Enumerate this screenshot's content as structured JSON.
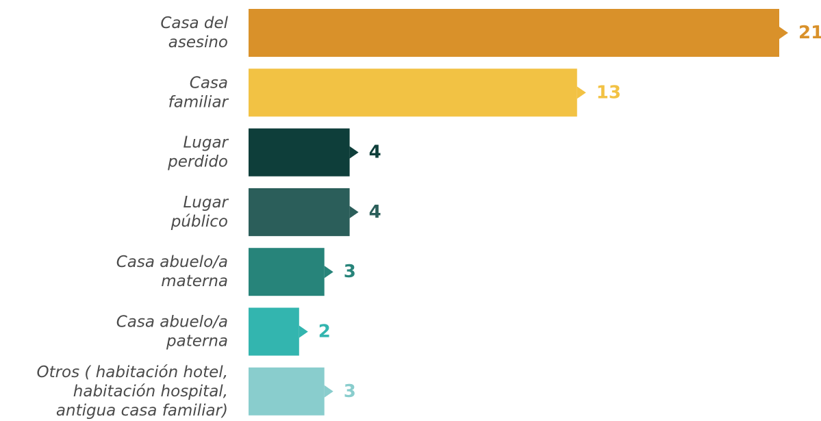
{
  "chart_data": {
    "type": "bar",
    "orientation": "horizontal",
    "categories": [
      [
        "Casa del",
        "asesino"
      ],
      [
        "Casa",
        "familiar"
      ],
      [
        "Lugar",
        "perdido"
      ],
      [
        "Lugar",
        "público"
      ],
      [
        "Casa abuelo/a",
        "materna"
      ],
      [
        "Casa abuelo/a",
        "paterna"
      ],
      [
        "Otros ( habitación hotel,",
        "habitación hospital,",
        "antigua casa familiar)"
      ]
    ],
    "values": [
      21,
      13,
      4,
      4,
      3,
      2,
      3
    ],
    "colors": [
      "#D9912A",
      "#F2C244",
      "#0E3E3A",
      "#2B5E5A",
      "#27847A",
      "#33B5AF",
      "#89CDCD"
    ],
    "value_labels": [
      "21",
      "13",
      "4",
      "4",
      "3",
      "2",
      "3"
    ],
    "title": "",
    "xlabel": "",
    "ylabel": "",
    "xlim": [
      0,
      21
    ],
    "grid": false,
    "legend": "none"
  }
}
